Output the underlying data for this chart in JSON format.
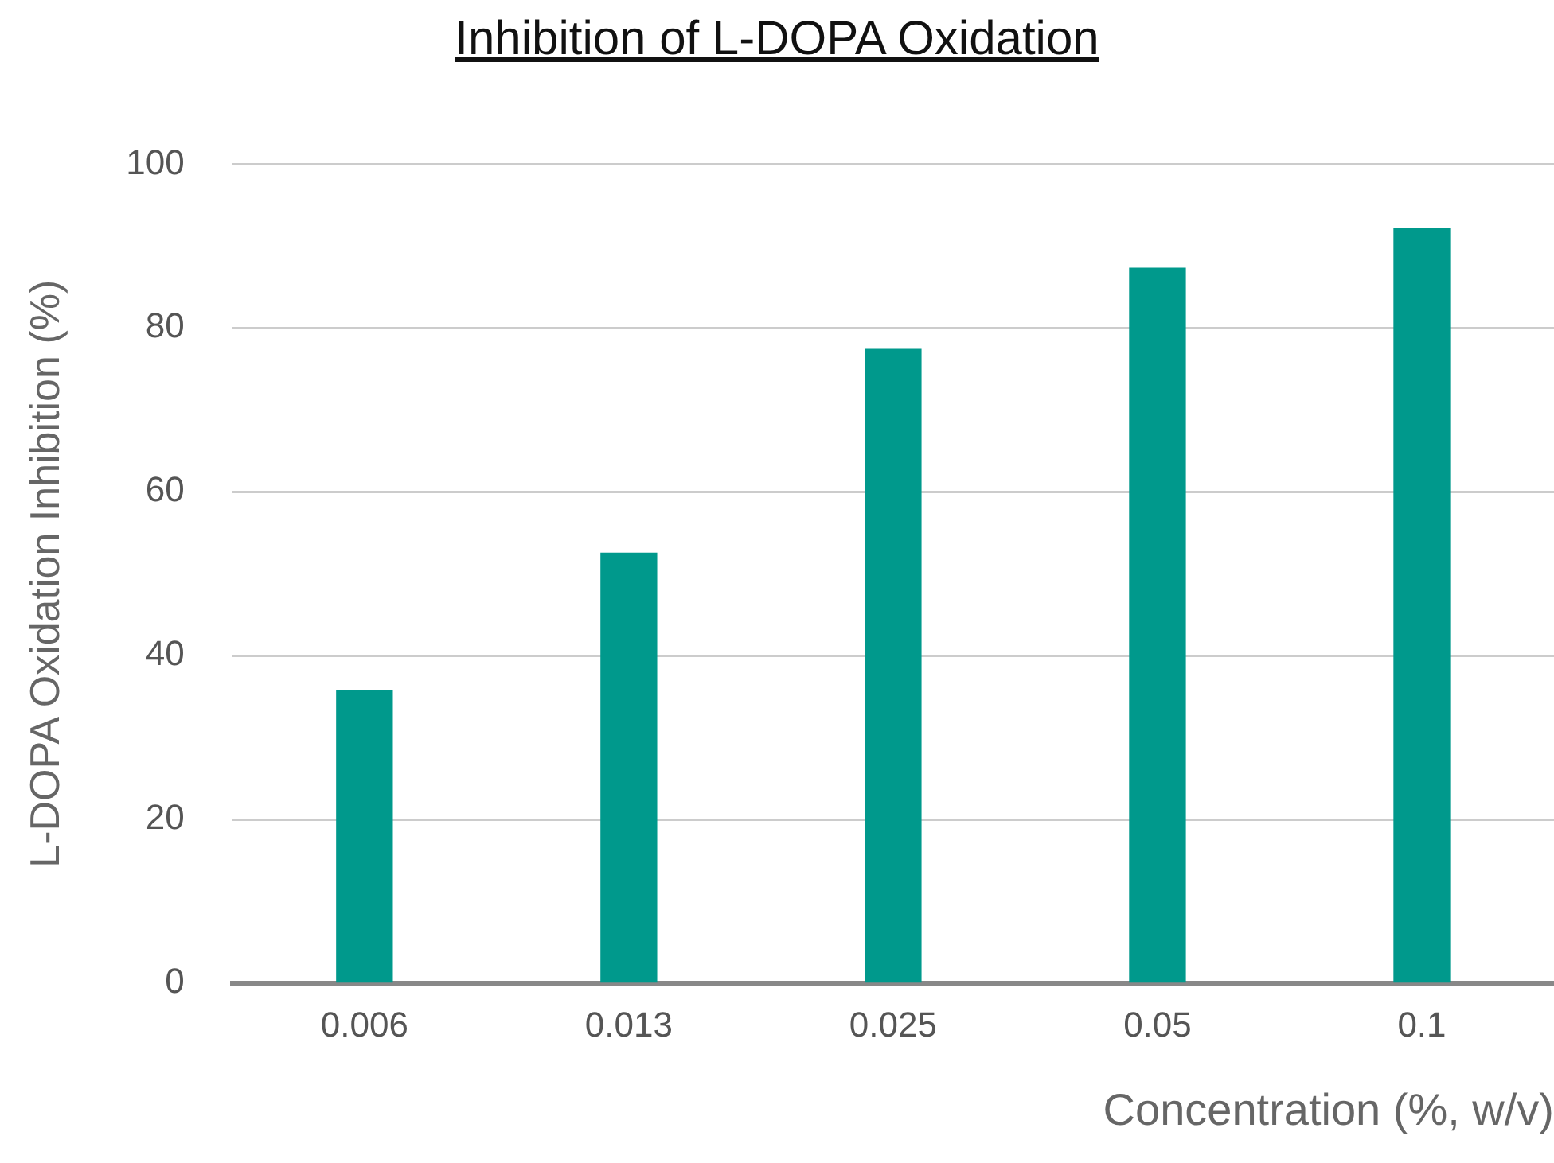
{
  "chart_data": {
    "type": "bar",
    "title": "Inhibition of L-DOPA Oxidation",
    "xlabel": "Concentration (%, w/v)",
    "ylabel": "L-DOPA Oxidation Inhibition (%)",
    "categories": [
      "0.006",
      "0.013",
      "0.025",
      "0.05",
      "0.1"
    ],
    "series": [
      {
        "color": "#00998c",
        "values": [
          35.7,
          52.5,
          77.4,
          87.3,
          92.2
        ]
      }
    ],
    "ylim": [
      0,
      100
    ],
    "yticks": [
      0,
      20,
      40,
      60,
      80,
      100
    ],
    "grid": "y"
  }
}
